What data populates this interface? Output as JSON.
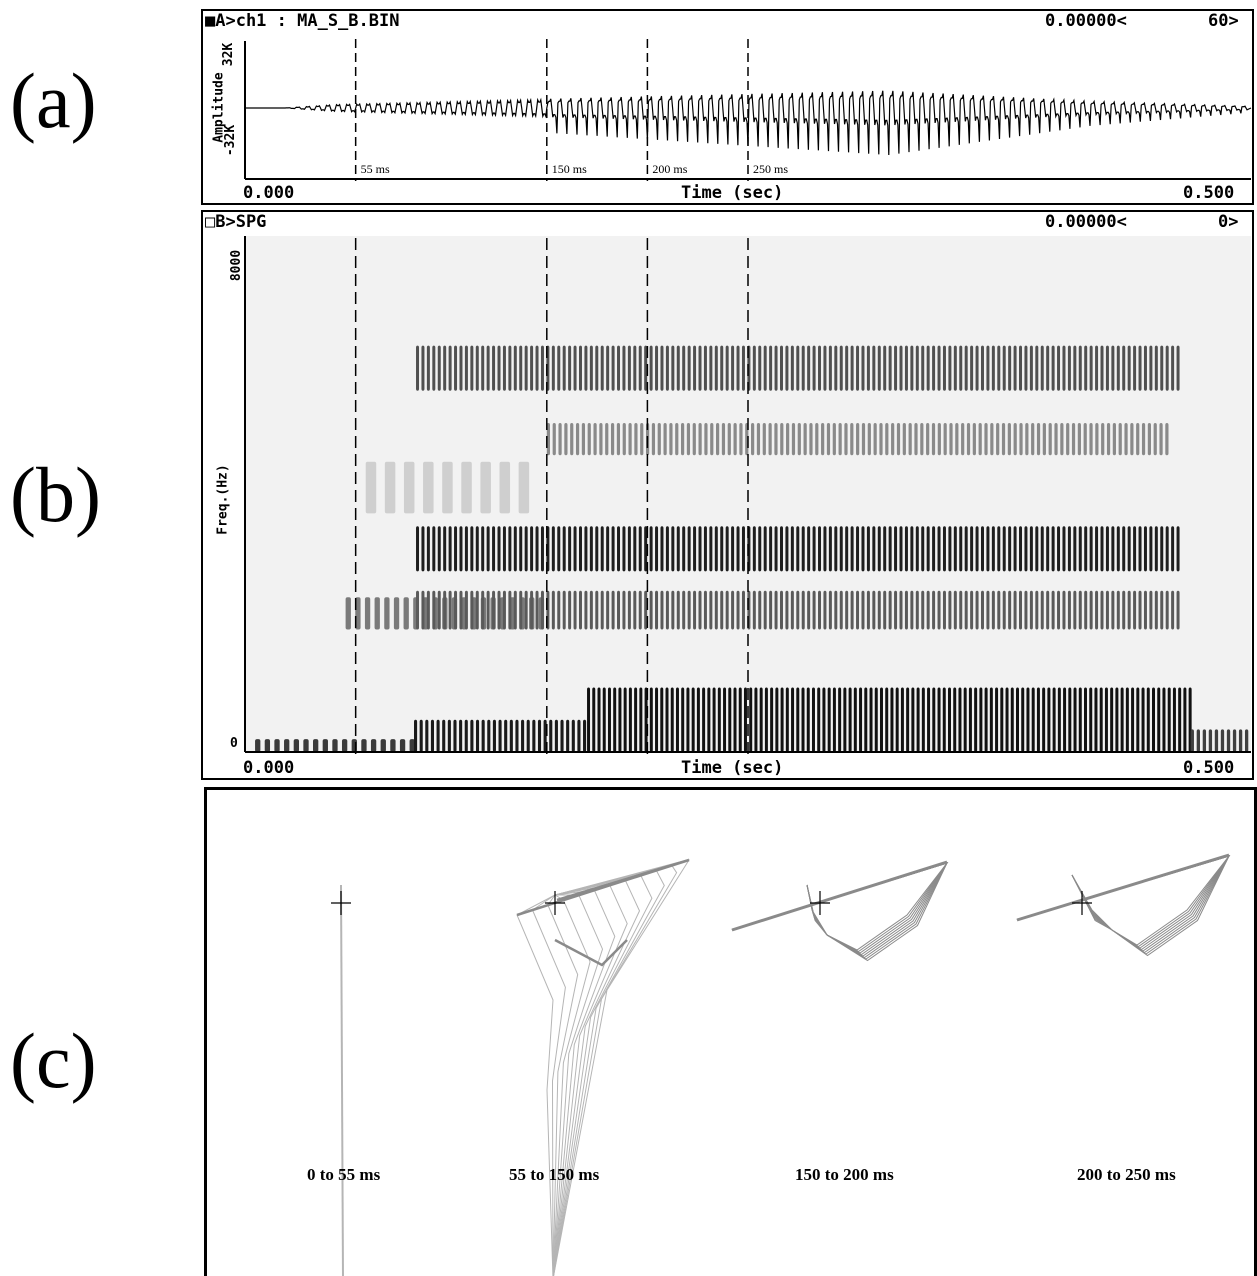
{
  "labels": {
    "a": "(a)",
    "b": "(b)",
    "c": "(c)"
  },
  "waveform": {
    "header_left": "■A>ch1 : MA_S_B.BIN",
    "header_right_value": "0.00000<",
    "header_right_num": "60>",
    "ylabel": "Amplitude",
    "ytick_top": "32K",
    "ytick_bottom": "-32K",
    "xlabel": "Time (sec)",
    "xstart": "0.000",
    "xend": "0.500"
  },
  "spectrogram": {
    "header_left": "□B>SPG",
    "header_right_value": "0.00000<",
    "header_right_num": "0>",
    "ylabel": "Freq.(Hz)",
    "ytick_top": "8000",
    "ytick_bottom": "0",
    "xlabel": "Time (sec)",
    "xstart": "0.000",
    "xend": "0.500"
  },
  "chart_data": [
    {
      "type": "line",
      "panel": "a",
      "x_range_sec": [
        0.0,
        0.5
      ],
      "y_range": [
        -32000,
        32000
      ],
      "markers_ms": [
        55,
        150,
        200,
        250
      ],
      "marker_labels": [
        "55 ms",
        "150 ms",
        "200 ms",
        "250 ms"
      ]
    },
    {
      "type": "heatmap",
      "panel": "b",
      "x_range_sec": [
        0.0,
        0.5
      ],
      "y_range_hz": [
        0,
        8000
      ],
      "markers_ms": [
        55,
        150,
        200,
        250
      ]
    },
    {
      "type": "line",
      "panel": "c",
      "segments": [
        "0 to 55 ms",
        "55 to 150 ms",
        "150 to 200 ms",
        "200 to 250 ms"
      ]
    }
  ],
  "colors": {
    "trace": "#000000",
    "shape": "#8a8a8a",
    "shape_light": "#b5b5b5"
  }
}
